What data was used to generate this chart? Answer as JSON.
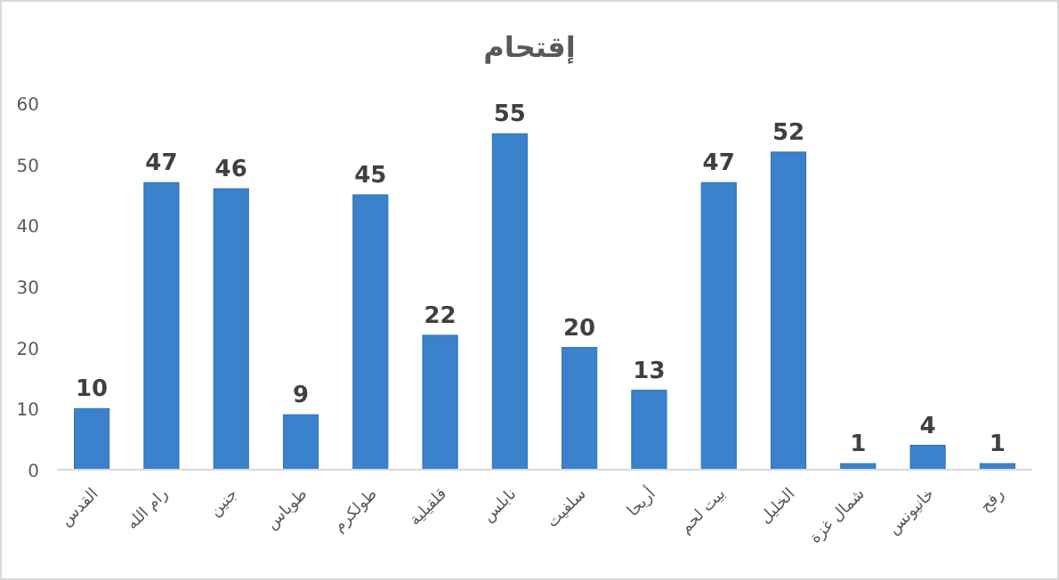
{
  "chart_data": {
    "type": "bar",
    "title": "إقتحام",
    "categories": [
      "القدس",
      "رام الله",
      "جنين",
      "طوباس",
      "طولكرم",
      "قلقيلية",
      "نابلس",
      "سلفيت",
      "أريحا",
      "بيت لحم",
      "الخليل",
      "شمال غزة",
      "خانيونس",
      "رفح"
    ],
    "values": [
      10,
      47,
      46,
      9,
      45,
      22,
      55,
      20,
      13,
      47,
      52,
      1,
      4,
      1
    ],
    "color": "#3b82cc",
    "ylim": [
      0,
      60
    ],
    "yticks": [
      0,
      10,
      20,
      30,
      40,
      50,
      60
    ],
    "data_labels": true,
    "grid": false
  }
}
